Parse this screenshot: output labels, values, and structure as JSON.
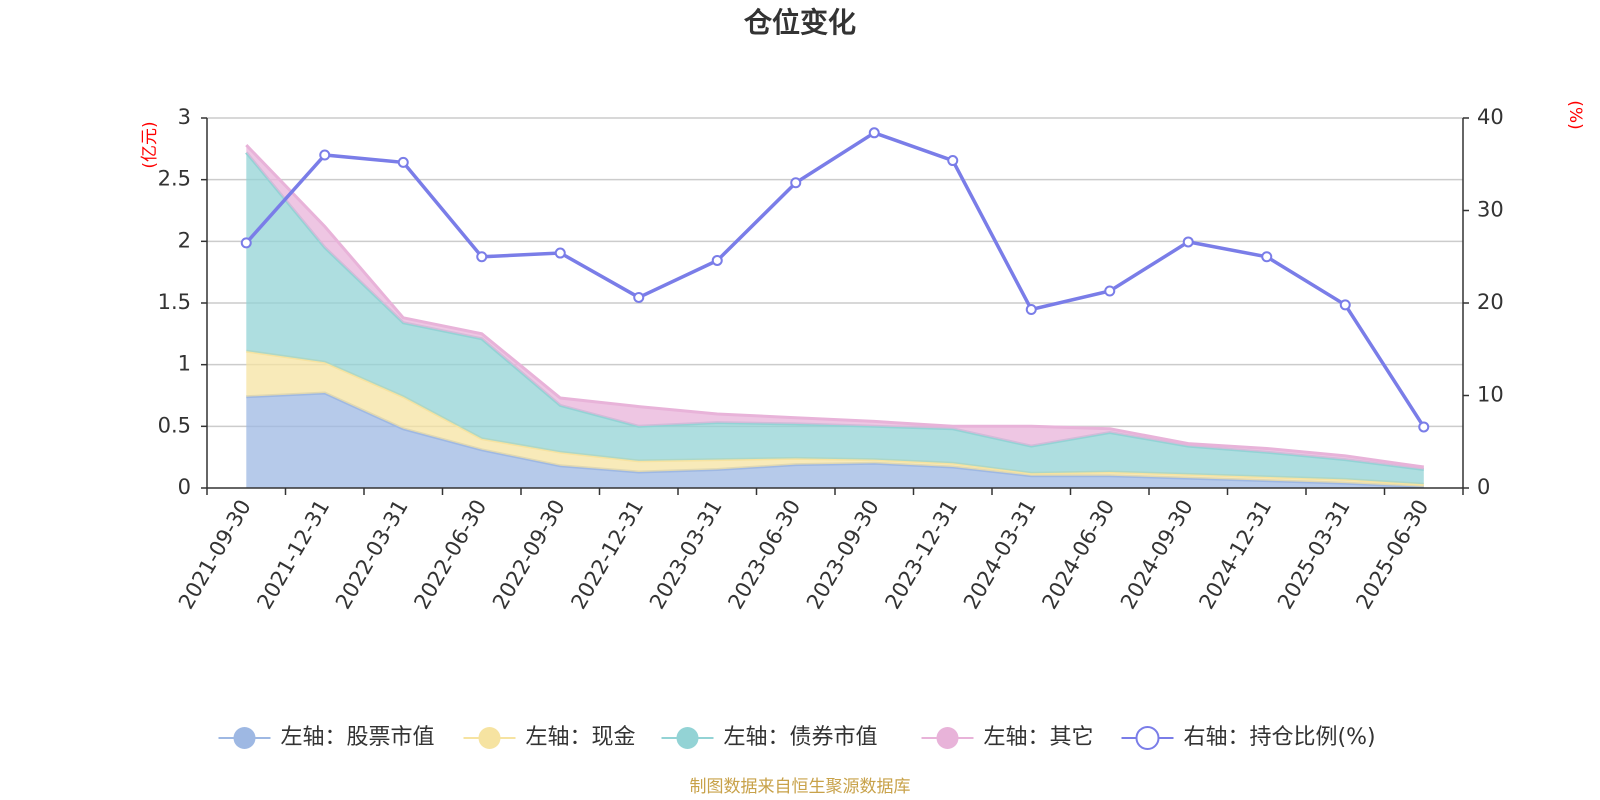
{
  "chart_data": {
    "type": "area",
    "title": "仓位变化",
    "left_unit": "(亿元)",
    "right_unit": "(%)",
    "x": [
      "2021-09-30",
      "2021-12-31",
      "2022-03-31",
      "2022-06-30",
      "2022-09-30",
      "2022-12-31",
      "2023-03-31",
      "2023-06-30",
      "2023-09-30",
      "2023-12-31",
      "2024-03-31",
      "2024-06-30",
      "2024-09-30",
      "2024-12-31",
      "2025-03-31",
      "2025-06-30"
    ],
    "left_ylim": [
      0,
      3
    ],
    "left_ticks": [
      "0",
      "0.5",
      "1",
      "1.5",
      "2",
      "2.5",
      "3"
    ],
    "right_ylim": [
      0,
      40
    ],
    "right_ticks": [
      "0",
      "10",
      "20",
      "30",
      "40"
    ],
    "grid": true,
    "legend_position": "bottom",
    "series": [
      {
        "name": "左轴：股票市值",
        "axis": "left",
        "stacked": true,
        "color": "#9eb8e3",
        "values": [
          0.74,
          0.77,
          0.48,
          0.31,
          0.18,
          0.13,
          0.15,
          0.19,
          0.2,
          0.17,
          0.1,
          0.1,
          0.08,
          0.06,
          0.04,
          0.01
        ]
      },
      {
        "name": "左轴：现金",
        "axis": "left",
        "stacked": true,
        "color": "#f6e3a1",
        "values": [
          0.37,
          0.25,
          0.26,
          0.09,
          0.11,
          0.09,
          0.08,
          0.05,
          0.03,
          0.03,
          0.02,
          0.03,
          0.03,
          0.03,
          0.03,
          0.02
        ]
      },
      {
        "name": "左轴：债券市值",
        "axis": "left",
        "stacked": true,
        "color": "#93d3d5",
        "values": [
          1.61,
          0.93,
          0.6,
          0.81,
          0.38,
          0.28,
          0.3,
          0.28,
          0.27,
          0.28,
          0.22,
          0.32,
          0.23,
          0.2,
          0.16,
          0.12
        ]
      },
      {
        "name": "左轴：其它",
        "axis": "left",
        "stacked": true,
        "color": "#e8b3d9",
        "values": [
          0.06,
          0.17,
          0.04,
          0.04,
          0.06,
          0.16,
          0.07,
          0.05,
          0.04,
          0.02,
          0.16,
          0.03,
          0.02,
          0.03,
          0.03,
          0.02
        ]
      },
      {
        "name": "右轴：持仓比例(%)",
        "axis": "right",
        "type": "line",
        "color": "#7a7de8",
        "values": [
          26.5,
          36.0,
          35.2,
          25.0,
          25.4,
          20.6,
          24.6,
          33.0,
          38.4,
          35.4,
          19.3,
          21.3,
          26.6,
          25.0,
          19.8,
          6.6
        ]
      }
    ],
    "source_note": "制图数据来自恒生聚源数据库"
  }
}
